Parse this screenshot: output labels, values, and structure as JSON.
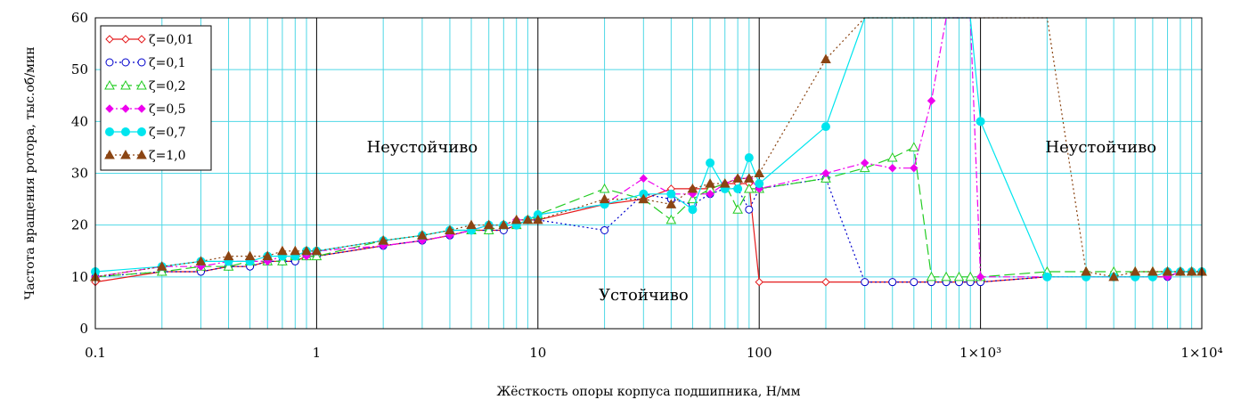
{
  "chart_data": {
    "type": "line",
    "xlabel": "Жёсткость опоры корпуса подшипника, Н/мм",
    "ylabel": "Частота вращения ротора, тыс.об/мин",
    "x_scale": "log",
    "xlim": [
      0.1,
      10000
    ],
    "ylim": [
      0,
      60
    ],
    "grid": true,
    "legend_position": "top-left",
    "x_ticks": [
      0.1,
      1,
      10,
      100,
      1000,
      10000
    ],
    "x_tick_labels": [
      "0.1",
      "1",
      "10",
      "100",
      "1×10³",
      "1×10⁴"
    ],
    "y_ticks": [
      0,
      10,
      20,
      30,
      40,
      50,
      60
    ],
    "y_tick_labels": [
      "0",
      "10",
      "20",
      "30",
      "40",
      "50",
      "60"
    ],
    "annotations": [
      {
        "text": "Неустойчиво",
        "x": 3,
        "y": 34
      },
      {
        "text": "Устойчиво",
        "x": 30,
        "y": 5.5
      },
      {
        "text": "Неустойчиво",
        "x": 3500,
        "y": 34
      }
    ],
    "series": [
      {
        "name": "ζ=0,01",
        "color": "#e41a1c",
        "dash": "",
        "marker": "diamond-open",
        "x": [
          0.1,
          0.2,
          0.3,
          0.4,
          0.5,
          0.6,
          0.7,
          0.8,
          0.9,
          1,
          2,
          3,
          4,
          5,
          6,
          7,
          8,
          9,
          10,
          20,
          30,
          40,
          50,
          60,
          70,
          80,
          90,
          100,
          200,
          300,
          400,
          500,
          600,
          700,
          800,
          900,
          1000,
          2000,
          3000,
          4000,
          5000,
          6000,
          7000,
          8000,
          9000,
          10000
        ],
        "y": [
          9,
          11,
          11,
          12,
          12,
          13,
          13,
          13,
          14,
          14,
          16,
          17,
          18,
          19,
          19,
          19,
          20,
          21,
          21,
          24,
          25,
          27,
          27,
          27,
          28,
          28,
          28,
          9,
          9,
          9,
          9,
          9,
          9,
          9,
          9,
          9,
          9,
          10,
          10,
          10,
          10,
          10,
          10,
          11,
          11,
          11
        ]
      },
      {
        "name": "ζ=0,1",
        "color": "#0000cc",
        "dash": "2,3",
        "marker": "circle-open",
        "x": [
          0.1,
          0.2,
          0.3,
          0.4,
          0.5,
          0.6,
          0.7,
          0.8,
          0.9,
          1,
          2,
          3,
          4,
          5,
          6,
          7,
          8,
          9,
          10,
          20,
          30,
          40,
          50,
          60,
          70,
          80,
          90,
          100,
          200,
          300,
          400,
          500,
          600,
          700,
          800,
          900,
          1000,
          2000,
          3000,
          4000,
          5000,
          6000,
          7000,
          8000,
          9000,
          10000
        ],
        "y": [
          10,
          11,
          11,
          12,
          12,
          13,
          13,
          13,
          14,
          14,
          16,
          17,
          18,
          19,
          19,
          19,
          20,
          21,
          21,
          19,
          26,
          25,
          24,
          26,
          27,
          27,
          23,
          27,
          29,
          9,
          9,
          9,
          9,
          9,
          9,
          9,
          9,
          10,
          10,
          10,
          10,
          10,
          10,
          11,
          11,
          11
        ]
      },
      {
        "name": "ζ=0,2",
        "color": "#22cc22",
        "dash": "12,5",
        "marker": "triangle-open",
        "x": [
          0.1,
          0.2,
          0.3,
          0.4,
          0.5,
          0.6,
          0.7,
          0.8,
          0.9,
          1,
          2,
          3,
          4,
          5,
          6,
          7,
          8,
          9,
          10,
          20,
          30,
          40,
          50,
          60,
          70,
          80,
          90,
          100,
          200,
          300,
          400,
          500,
          600,
          700,
          800,
          900,
          1000,
          2000,
          3000,
          4000,
          5000,
          6000,
          7000,
          8000,
          9000,
          10000
        ],
        "y": [
          10,
          11,
          12,
          12,
          13,
          13,
          13,
          14,
          14,
          14,
          17,
          18,
          19,
          19,
          19,
          20,
          20,
          21,
          22,
          27,
          25,
          21,
          25,
          27,
          28,
          23,
          27,
          27,
          29,
          31,
          33,
          35,
          10,
          10,
          10,
          10,
          10,
          11,
          11,
          11,
          11,
          11,
          11,
          11,
          11,
          11
        ]
      },
      {
        "name": "ζ=0,5",
        "color": "#ee00ee",
        "dash": "8,3,2,3",
        "marker": "diamond-filled",
        "x": [
          0.1,
          0.2,
          0.3,
          0.4,
          0.5,
          0.6,
          0.7,
          0.8,
          0.9,
          1,
          2,
          3,
          4,
          5,
          6,
          7,
          8,
          9,
          10,
          20,
          30,
          40,
          50,
          60,
          70,
          80,
          90,
          100,
          200,
          300,
          400,
          500,
          600,
          700,
          800,
          900,
          1000,
          2000,
          3000,
          4000,
          5000,
          6000,
          7000,
          8000,
          9000,
          10000
        ],
        "y": [
          10,
          12,
          12,
          13,
          13,
          13,
          14,
          14,
          14,
          15,
          16,
          17,
          18,
          19,
          20,
          20,
          21,
          21,
          22,
          24,
          29,
          26,
          26,
          26,
          28,
          29,
          29,
          27,
          30,
          32,
          31,
          31,
          44,
          60,
          60,
          60,
          10,
          10,
          10,
          10,
          10,
          10,
          10,
          11,
          11,
          11
        ]
      },
      {
        "name": "ζ=0,7",
        "color": "#00e5ee",
        "dash": "",
        "marker": "circle-filled",
        "x": [
          0.1,
          0.2,
          0.3,
          0.4,
          0.5,
          0.6,
          0.7,
          0.8,
          0.9,
          1,
          2,
          3,
          4,
          5,
          6,
          7,
          8,
          9,
          10,
          20,
          30,
          40,
          50,
          60,
          70,
          80,
          90,
          100,
          200,
          300,
          400,
          500,
          600,
          700,
          800,
          900,
          1000,
          2000,
          3000,
          4000,
          5000,
          6000,
          7000,
          8000,
          9000,
          10000
        ],
        "y": [
          11,
          12,
          13,
          13,
          13,
          14,
          14,
          14,
          15,
          15,
          17,
          18,
          19,
          19,
          20,
          20,
          20,
          21,
          22,
          24,
          26,
          26,
          23,
          32,
          27,
          27,
          33,
          28,
          39,
          60,
          60,
          60,
          60,
          60,
          60,
          60,
          40,
          10,
          10,
          10,
          10,
          10,
          11,
          11,
          11,
          11
        ]
      },
      {
        "name": "ζ=1,0",
        "color": "#8b4513",
        "dash": "2,3",
        "marker": "triangle-filled",
        "x": [
          0.1,
          0.2,
          0.3,
          0.4,
          0.5,
          0.6,
          0.7,
          0.8,
          0.9,
          1,
          2,
          3,
          4,
          5,
          6,
          7,
          8,
          9,
          10,
          20,
          30,
          40,
          50,
          60,
          70,
          80,
          90,
          100,
          200,
          300,
          400,
          500,
          600,
          700,
          800,
          900,
          1000,
          2000,
          3000,
          4000,
          5000,
          6000,
          7000,
          8000,
          9000,
          10000
        ],
        "y": [
          10,
          12,
          13,
          14,
          14,
          14,
          15,
          15,
          15,
          15,
          17,
          18,
          19,
          20,
          20,
          20,
          21,
          21,
          21,
          25,
          25,
          24,
          27,
          28,
          28,
          29,
          29,
          30,
          52,
          60,
          60,
          60,
          60,
          60,
          60,
          60,
          60,
          60,
          11,
          10,
          11,
          11,
          11,
          11,
          11,
          11
        ]
      }
    ]
  }
}
